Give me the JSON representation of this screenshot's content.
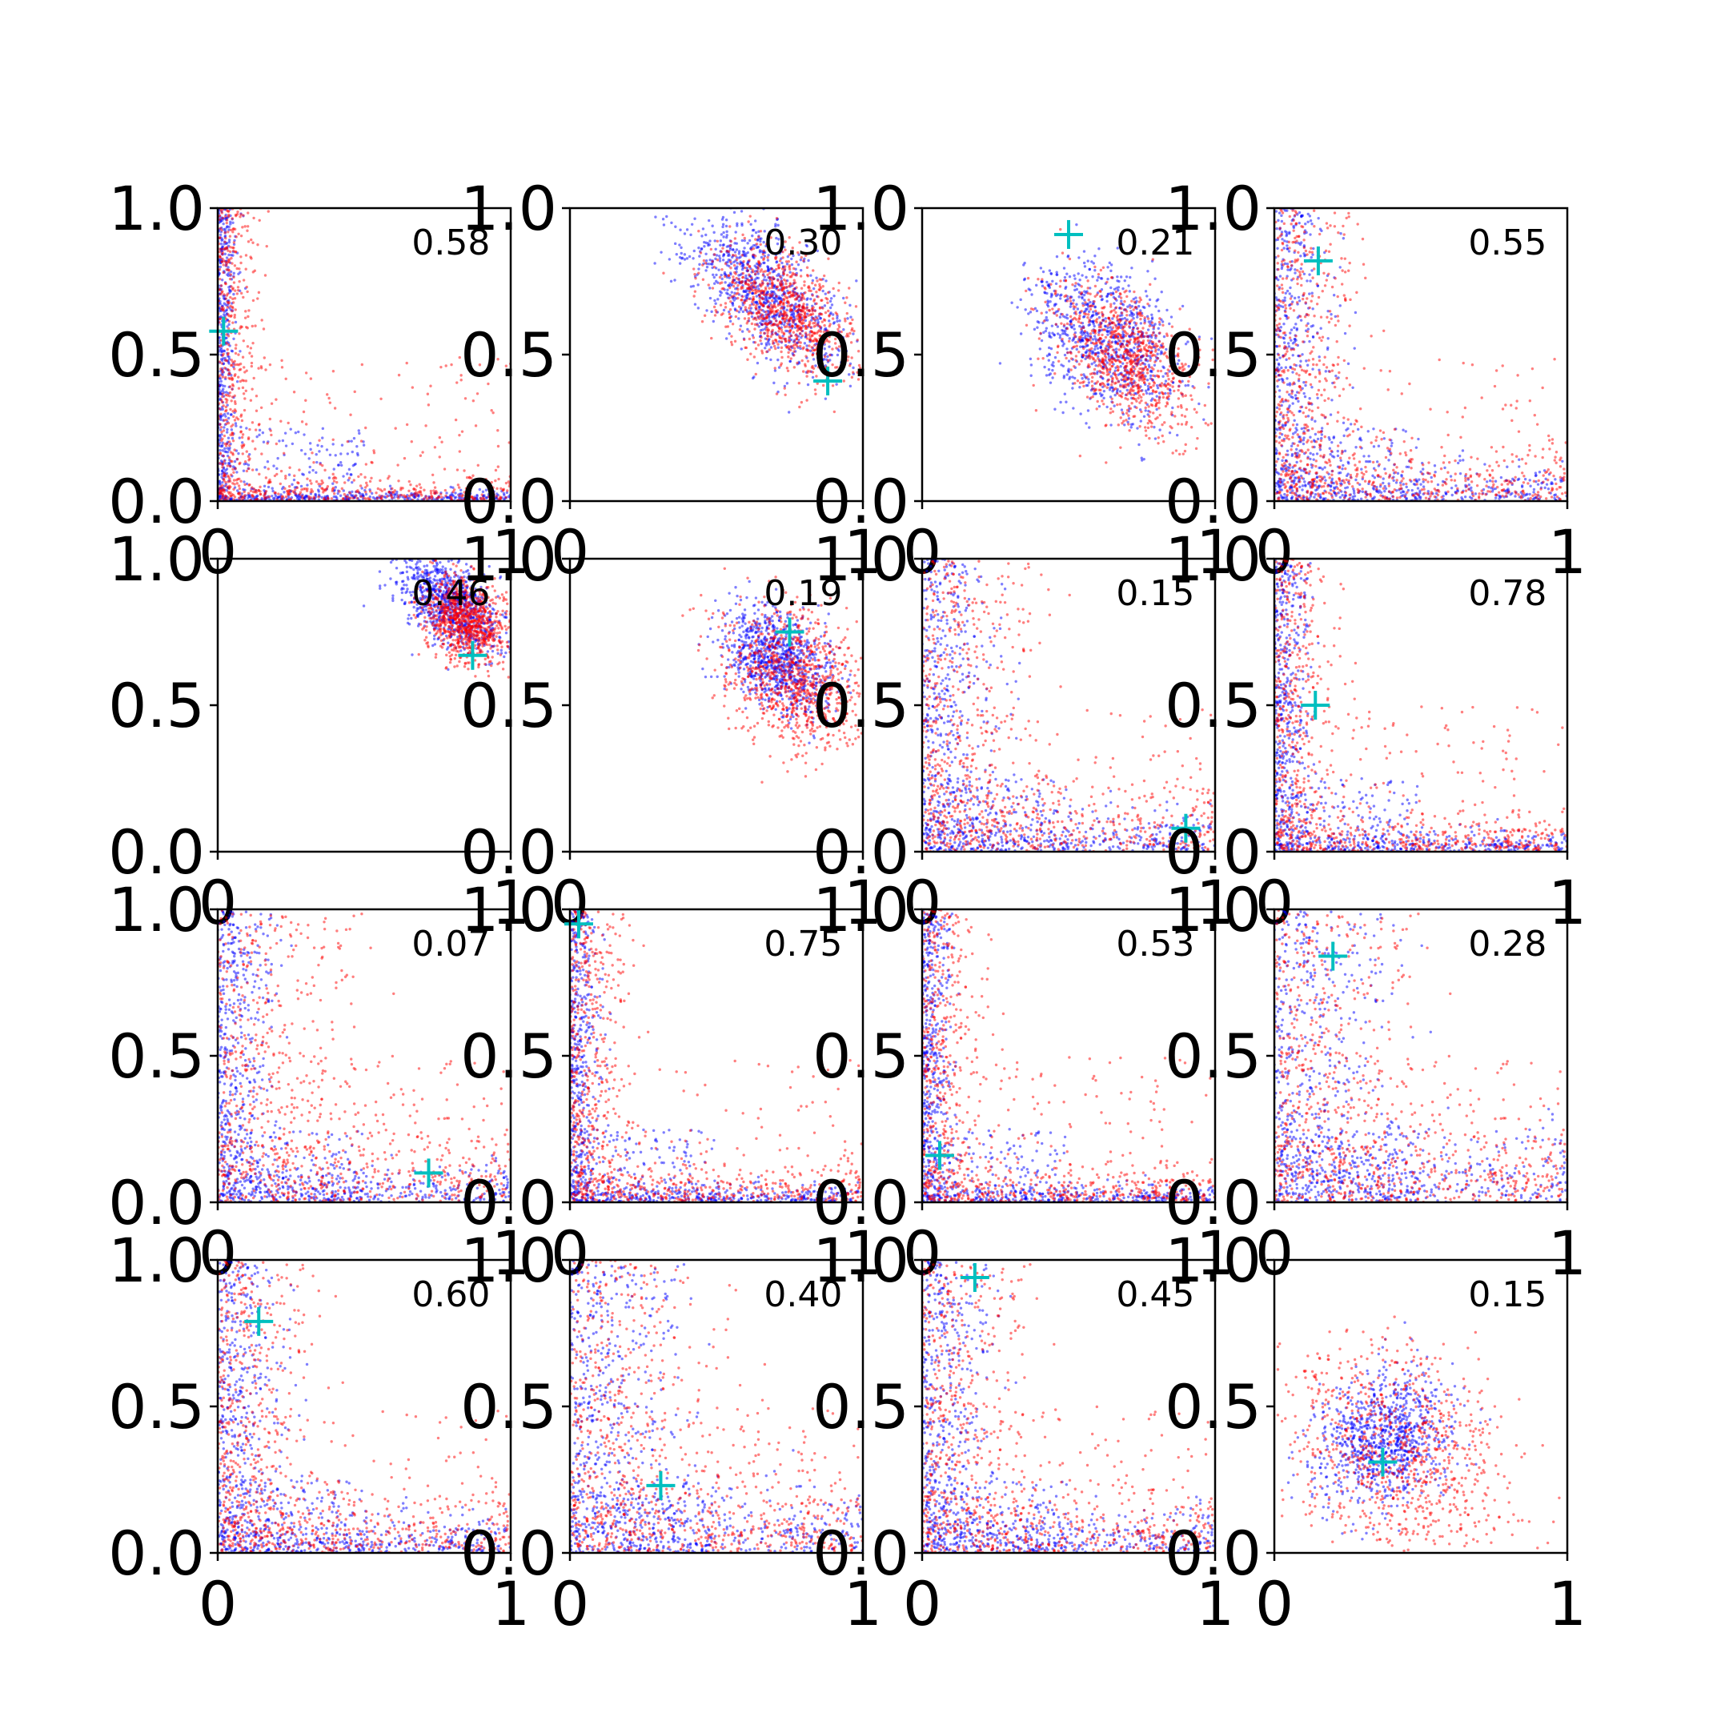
{
  "chart_data": {
    "type": "scatter",
    "layout": "4x4 grid of small scatter panels",
    "xlim": [
      0,
      1
    ],
    "ylim": [
      0,
      1
    ],
    "x_tick_labels": [
      "0",
      "1"
    ],
    "y_tick_labels": [
      "0.0",
      "0.5",
      "1.0"
    ],
    "series_colors": {
      "blue": "#0000ff",
      "red": "#ff0000",
      "marker": "#00bfbf"
    },
    "panels": [
      {
        "label": "0.58",
        "shape": "L",
        "red_w": 0.07,
        "blue_w": 0.03,
        "marker": [
          0.02,
          0.58
        ]
      },
      {
        "label": "0.30",
        "shape": "blob",
        "cx": 0.7,
        "cy": 0.68,
        "red_r": [
          0.08,
          0.14
        ],
        "blue_r": [
          0.08,
          0.17
        ],
        "marker": [
          0.88,
          0.41
        ]
      },
      {
        "label": "0.21",
        "shape": "blob",
        "cx": 0.66,
        "cy": 0.52,
        "red_r": [
          0.09,
          0.15
        ],
        "blue_r": [
          0.1,
          0.15
        ],
        "marker": [
          0.5,
          0.91
        ]
      },
      {
        "label": "0.55",
        "shape": "L",
        "red_w": 0.14,
        "blue_w": 0.1,
        "marker": [
          0.15,
          0.82
        ]
      },
      {
        "label": "0.46",
        "shape": "blob",
        "cx": 0.82,
        "cy": 0.82,
        "red_r": [
          0.06,
          0.08
        ],
        "blue_r": [
          0.06,
          0.1
        ],
        "marker": [
          0.87,
          0.67
        ]
      },
      {
        "label": "0.19",
        "shape": "blob",
        "cx": 0.74,
        "cy": 0.62,
        "red_r": [
          0.1,
          0.14
        ],
        "blue_r": [
          0.07,
          0.11
        ],
        "marker": [
          0.75,
          0.75
        ]
      },
      {
        "label": "0.15",
        "shape": "L",
        "red_w": 0.2,
        "blue_w": 0.12,
        "marker": [
          0.9,
          0.08
        ]
      },
      {
        "label": "0.78",
        "shape": "L",
        "red_w": 0.1,
        "blue_w": 0.06,
        "marker": [
          0.14,
          0.5
        ]
      },
      {
        "label": "0.07",
        "shape": "L",
        "red_w": 0.24,
        "blue_w": 0.1,
        "marker": [
          0.72,
          0.1
        ]
      },
      {
        "label": "0.75",
        "shape": "L",
        "red_w": 0.1,
        "blue_w": 0.05,
        "marker": [
          0.03,
          0.95
        ]
      },
      {
        "label": "0.53",
        "shape": "L",
        "red_w": 0.1,
        "blue_w": 0.05,
        "marker": [
          0.06,
          0.16
        ]
      },
      {
        "label": "0.28",
        "shape": "L",
        "red_w": 0.24,
        "blue_w": 0.2,
        "marker": [
          0.2,
          0.84
        ]
      },
      {
        "label": "0.60",
        "shape": "L",
        "red_w": 0.16,
        "blue_w": 0.11,
        "marker": [
          0.14,
          0.79
        ]
      },
      {
        "label": "0.40",
        "shape": "L",
        "red_w": 0.24,
        "blue_w": 0.19,
        "marker": [
          0.31,
          0.23
        ]
      },
      {
        "label": "0.45",
        "shape": "L",
        "red_w": 0.18,
        "blue_w": 0.12,
        "marker": [
          0.18,
          0.94
        ]
      },
      {
        "label": "0.15",
        "shape": "blob",
        "cx": 0.4,
        "cy": 0.36,
        "red_r": [
          0.16,
          0.22
        ],
        "blue_r": [
          0.12,
          0.1
        ],
        "marker": [
          0.37,
          0.31
        ]
      }
    ]
  }
}
